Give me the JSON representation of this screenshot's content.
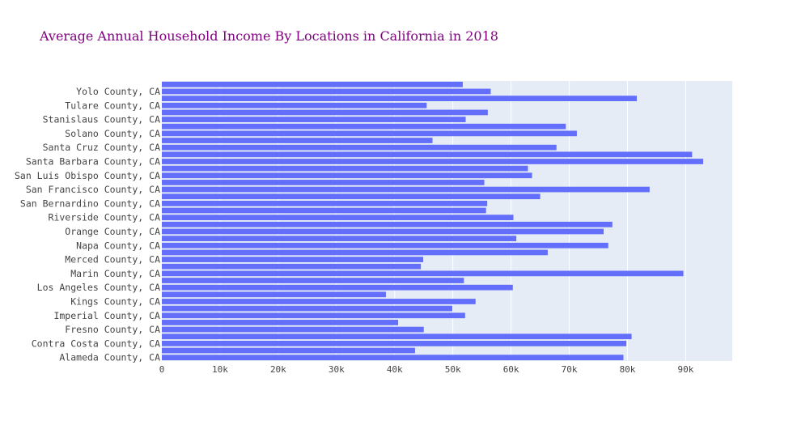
{
  "colors": {
    "bar": "#636efa",
    "plot_bg": "#e5ecf6",
    "grid": "#ffffff",
    "title": "#800080",
    "paper_bg": "#ffffff"
  },
  "chart_data": {
    "type": "bar",
    "orientation": "horizontal",
    "title": "Average Annual Household Income By Locations in California in 2018",
    "xlabel": "",
    "ylabel": "",
    "xlim": [
      0,
      98000
    ],
    "grid": true,
    "x_ticks": [
      0,
      10000,
      20000,
      30000,
      40000,
      50000,
      60000,
      70000,
      80000,
      90000
    ],
    "x_tick_labels": [
      "0",
      "10k",
      "20k",
      "30k",
      "40k",
      "50k",
      "60k",
      "70k",
      "80k",
      "90k"
    ],
    "categories": [
      "Alameda County, CA",
      "",
      "Contra Costa County, CA",
      "",
      "Fresno County, CA",
      "",
      "Imperial County, CA",
      "",
      "Kings County, CA",
      "",
      "Los Angeles County, CA",
      "",
      "Marin County, CA",
      "",
      "Merced County, CA",
      "",
      "Napa County, CA",
      "",
      "Orange County, CA",
      "",
      "Riverside County, CA",
      "",
      "San Bernardino County, CA",
      "",
      "San Francisco County, CA",
      "",
      "San Luis Obispo County, CA",
      "",
      "Santa Barbara County, CA",
      "",
      "Santa Cruz County, CA",
      "",
      "Solano County, CA",
      "",
      "Stanislaus County, CA",
      "",
      "Tulare County, CA",
      "",
      "Yolo County, CA",
      ""
    ],
    "values": [
      79300,
      43500,
      79800,
      80700,
      45000,
      40600,
      52100,
      49900,
      53900,
      38500,
      60300,
      51900,
      89600,
      44500,
      44900,
      66300,
      76700,
      60900,
      75900,
      77400,
      60400,
      55700,
      55900,
      65000,
      83800,
      55400,
      63600,
      62900,
      93000,
      91100,
      67800,
      46500,
      71300,
      69400,
      52200,
      56000,
      45500,
      81600,
      56500,
      51700
    ]
  }
}
